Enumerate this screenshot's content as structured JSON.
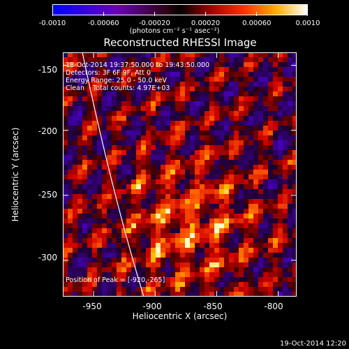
{
  "colorbar": {
    "tick_labels": [
      "-0.0010",
      "-0.00060",
      "-0.00020",
      "0.00020",
      "0.00060",
      "0.0010"
    ],
    "range": [
      -0.001,
      0.001
    ],
    "units_text": "(photons cm⁻² s⁻¹ asec⁻²)"
  },
  "title": "Reconstructed RHESSI Image",
  "info_lines": [
    "18-Oct-2014 19:37:50.000 to 19:43:50.000",
    "Detectors: 3F 6F 9F, Att 0",
    "Energy Range: 25.0 - 50.0 keV",
    "Clean    Total counts: 4.97E+03"
  ],
  "peak_label": "Position of Peak = [-920,-265]",
  "chart_data": {
    "type": "heatmap",
    "title": "Reconstructed RHESSI Image",
    "xlabel": "Heliocentric X (arcsec)",
    "ylabel": "Heliocentric Y (arcsec)",
    "xlim": [
      -975,
      -785
    ],
    "ylim": [
      -328,
      -140
    ],
    "x_tick_labels": [
      "-950",
      "-900",
      "-850",
      "-800"
    ],
    "x_ticks": [
      -950,
      -900,
      -850,
      -800
    ],
    "y_tick_labels": [
      "-150",
      "-200",
      "-250",
      "-300"
    ],
    "y_ticks": [
      -150,
      -200,
      -250,
      -300
    ],
    "peak": [
      -920,
      -265
    ],
    "limb_color": "#ffffff"
  },
  "timestamp": "19-Oct-2014 12:20"
}
